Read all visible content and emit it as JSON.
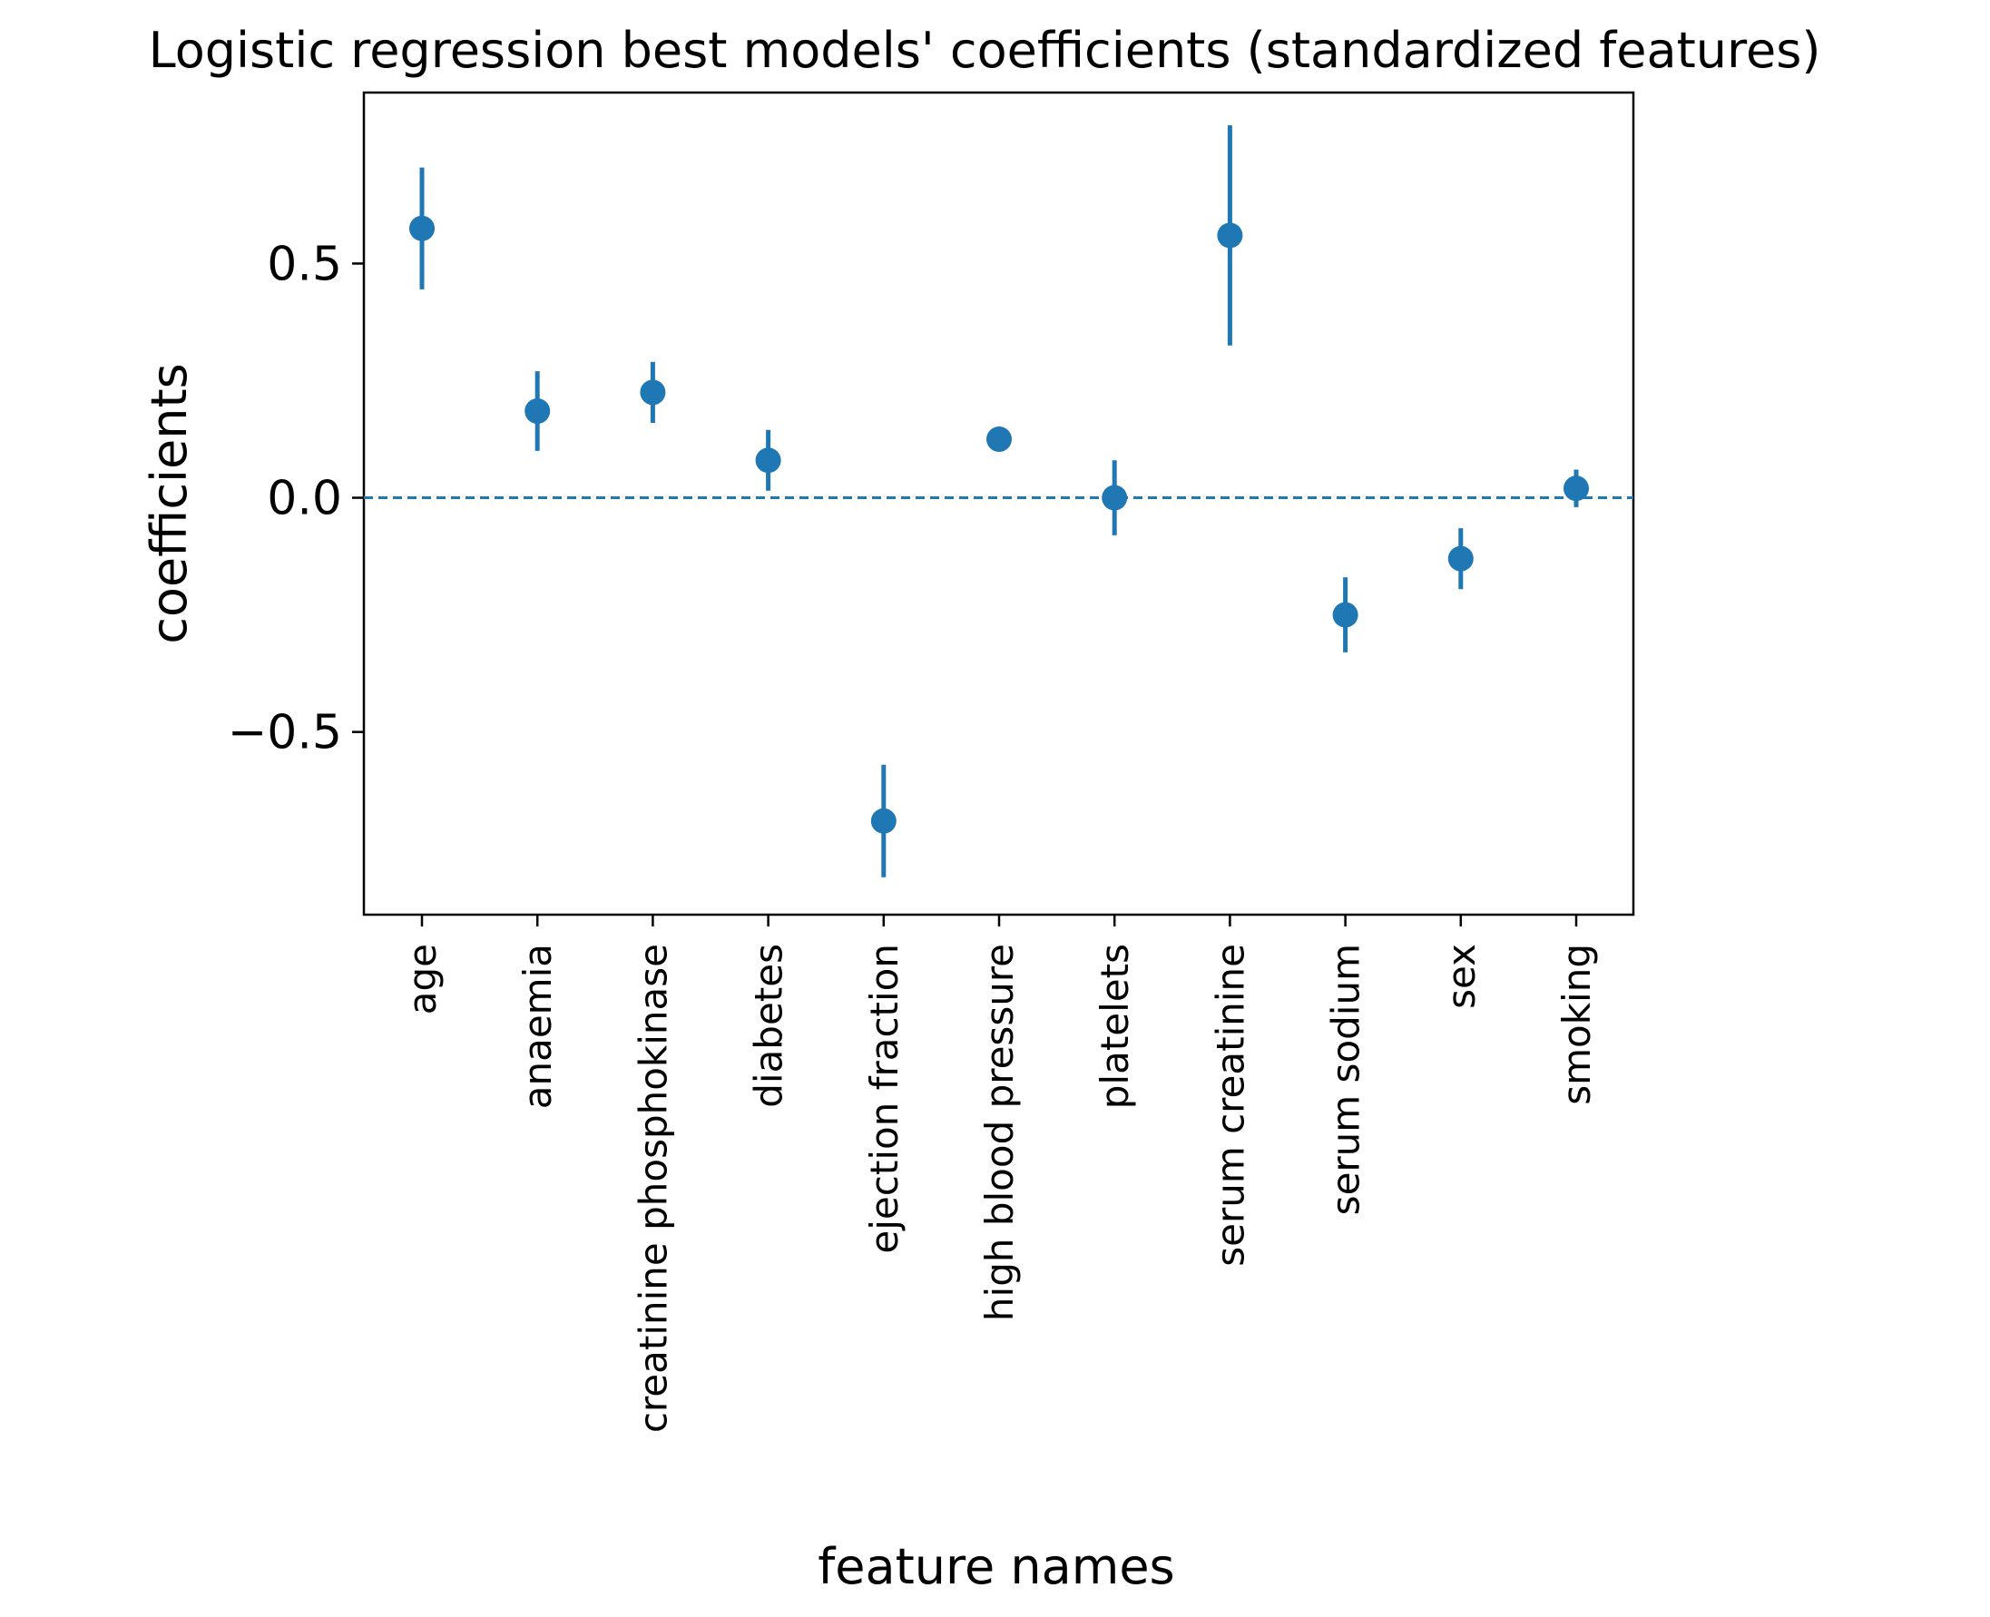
{
  "chart_data": {
    "type": "scatter",
    "title": "Logistic regression best models' coefficients (standardized features)",
    "xlabel": "feature names",
    "ylabel": "coefficients",
    "categories": [
      "age",
      "anaemia",
      "creatinine phosphokinase",
      "diabetes",
      "ejection fraction",
      "high blood pressure",
      "platelets",
      "serum creatinine",
      "serum sodium",
      "sex",
      "smoking"
    ],
    "series": [
      {
        "values": [
          0.575,
          0.185,
          0.225,
          0.08,
          -0.69,
          0.125,
          0.0,
          0.56,
          -0.25,
          -0.13,
          0.02
        ],
        "error_low": [
          0.445,
          0.1,
          0.16,
          0.015,
          -0.81,
          0.125,
          -0.08,
          0.325,
          -0.33,
          -0.195,
          -0.02
        ],
        "error_high": [
          0.705,
          0.27,
          0.29,
          0.145,
          -0.57,
          0.125,
          0.08,
          0.795,
          -0.17,
          -0.065,
          0.06
        ]
      }
    ],
    "yticks": [
      -0.5,
      0.0,
      0.5
    ],
    "ytick_labels": [
      "−0.5",
      "0.0",
      "0.5"
    ],
    "ylim": [
      -0.89,
      0.865
    ],
    "reference_line": {
      "y": 0.0,
      "style": "dashed"
    },
    "colors": {
      "series": "#1f77b4",
      "axes": "#000000"
    },
    "grid": false,
    "legend": "none"
  }
}
